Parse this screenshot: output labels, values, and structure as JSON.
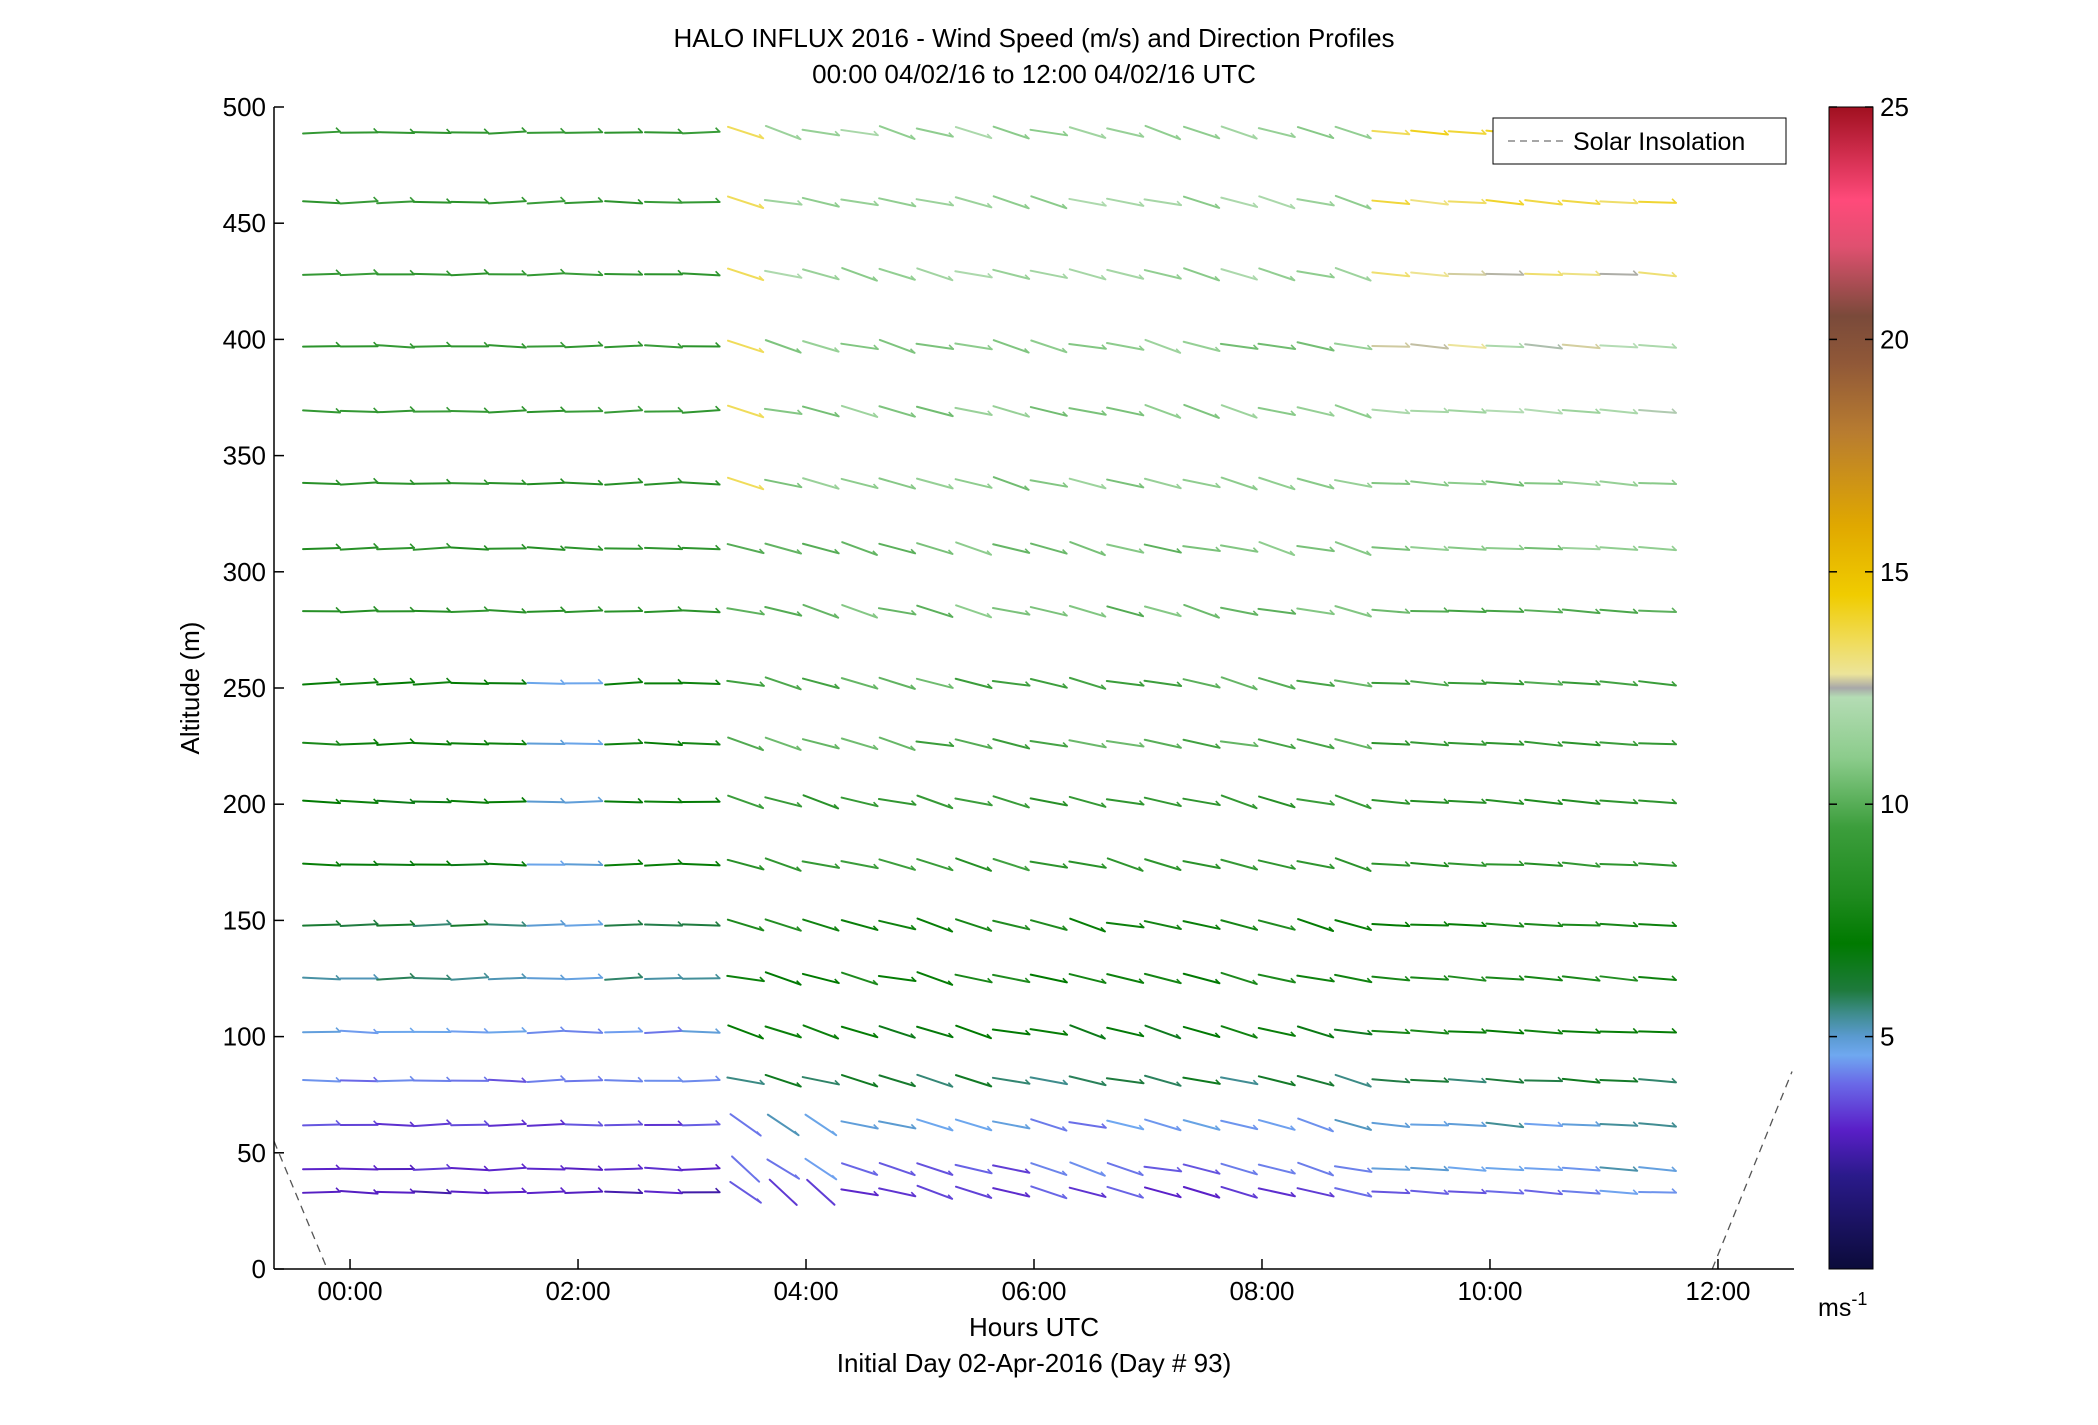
{
  "chart_data": {
    "type": "wind-barb-profile",
    "title": "HALO INFLUX 2016 - Wind Speed (m/s) and Direction Profiles",
    "subtitle": "00:00 04/02/16 to 12:00 04/02/16  UTC",
    "xlabel": "Hours UTC",
    "xlabel2": "Initial Day 02-Apr-2016 (Day # 93)",
    "ylabel": "Altitude (m)",
    "xlim": [
      -0.667,
      12.667
    ],
    "ylim": [
      0,
      500
    ],
    "x_ticks": [
      0,
      2,
      4,
      6,
      8,
      10,
      12
    ],
    "x_tick_labels": [
      "00:00",
      "02:00",
      "04:00",
      "06:00",
      "08:00",
      "10:00",
      "12:00"
    ],
    "y_ticks": [
      0,
      50,
      100,
      150,
      200,
      250,
      300,
      350,
      400,
      450,
      500
    ],
    "y_tick_labels": [
      "0",
      "50",
      "100",
      "150",
      "200",
      "250",
      "300",
      "350",
      "400",
      "450",
      "500"
    ],
    "legend": {
      "label": "Solar Insolation",
      "placement": "top-right",
      "style": "dashed",
      "color": "#888888"
    },
    "colorbar": {
      "unit": "ms",
      "unit_exponent": "-1",
      "range": [
        0,
        25
      ],
      "ticks": [
        5,
        10,
        15,
        20,
        25
      ],
      "tick_labels": [
        "5",
        "10",
        "15",
        "20",
        "25"
      ],
      "stops": [
        [
          0.0,
          "#0b0b3a"
        ],
        [
          2.0,
          "#2a1a8a"
        ],
        [
          3.0,
          "#5a1fc8"
        ],
        [
          4.0,
          "#6a6ae8"
        ],
        [
          4.6,
          "#6fa8f0"
        ],
        [
          5.0,
          "#5a9ad0"
        ],
        [
          5.5,
          "#3e8c8c"
        ],
        [
          6.0,
          "#1e7a3c"
        ],
        [
          7.0,
          "#007a00"
        ],
        [
          8.0,
          "#1e8a1e"
        ],
        [
          9.5,
          "#3c9e3c"
        ],
        [
          11.0,
          "#8ccc8c"
        ],
        [
          12.3,
          "#b4dcb4"
        ],
        [
          12.5,
          "#a8a8a8"
        ],
        [
          12.8,
          "#ece49a"
        ],
        [
          13.5,
          "#f0dc5a"
        ],
        [
          14.5,
          "#f0cc00"
        ],
        [
          16.0,
          "#e0a800"
        ],
        [
          18.0,
          "#b87c30"
        ],
        [
          19.5,
          "#905838"
        ],
        [
          20.5,
          "#7a4a3a"
        ],
        [
          22.0,
          "#e05070"
        ],
        [
          23.0,
          "#ff4a7a"
        ],
        [
          25.0,
          "#a01020"
        ]
      ]
    },
    "solar_insolation": {
      "left": [
        [
          -0.667,
          55
        ],
        [
          -0.2,
          0
        ]
      ],
      "right": [
        [
          11.95,
          0
        ],
        [
          12.65,
          85
        ]
      ]
    },
    "altitudes": [
      33,
      43,
      62,
      81,
      102,
      125,
      148,
      174,
      201,
      226,
      252,
      283,
      310,
      338,
      369,
      397,
      428,
      459,
      489
    ],
    "times": [
      -0.25,
      0.08,
      0.4,
      0.72,
      1.05,
      1.38,
      1.72,
      2.05,
      2.4,
      2.75,
      3.08,
      3.47,
      3.8,
      4.13,
      4.47,
      4.8,
      5.13,
      5.47,
      5.8,
      6.13,
      6.47,
      6.8,
      7.13,
      7.47,
      7.8,
      8.13,
      8.47,
      8.8,
      9.13,
      9.47,
      9.8,
      10.13,
      10.47,
      10.8,
      11.13,
      11.47
    ],
    "gap_times": [
      3.47
    ],
    "notes_profile": {
      "speed_by_altitude_early": [
        2.8,
        3.0,
        3.5,
        4.0,
        4.5,
        5.5,
        6.0,
        7.0,
        7.0,
        7.5,
        7.2,
        8.5,
        8.5,
        8.5,
        9.0,
        9.0,
        9.0,
        9.0,
        9.0
      ],
      "speed_by_altitude_mid": [
        3.5,
        4.0,
        4.6,
        6.0,
        7.0,
        7.5,
        7.8,
        9.0,
        9.0,
        10.0,
        10.0,
        10.5,
        10.5,
        11.0,
        11.0,
        11.0,
        11.5,
        11.5,
        11.5
      ],
      "speed_by_altitude_late": [
        4.2,
        4.8,
        5.0,
        6.0,
        7.5,
        7.8,
        7.5,
        8.5,
        8.5,
        9.0,
        9.5,
        10.0,
        11.0,
        11.0,
        12.0,
        12.5,
        13.0,
        13.5,
        14.0
      ]
    }
  }
}
